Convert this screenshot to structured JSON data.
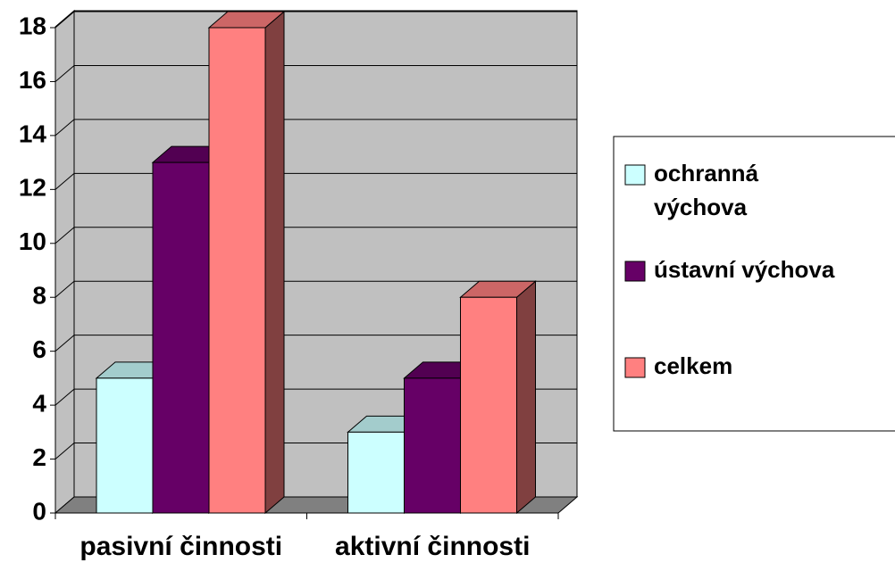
{
  "chart_data": {
    "type": "bar3d",
    "categories": [
      "pasivní činnosti",
      "aktivní činnosti"
    ],
    "series": [
      {
        "name": "ochranná výchova",
        "color": "#ccffff",
        "values": [
          5,
          3
        ]
      },
      {
        "name": "ústavní výchova",
        "color": "#660066",
        "values": [
          13,
          5
        ]
      },
      {
        "name": "celkem",
        "color": "#ff8080",
        "values": [
          18,
          8
        ]
      }
    ],
    "ylim": [
      0,
      18
    ],
    "yticks": [
      0,
      2,
      4,
      6,
      8,
      10,
      12,
      14,
      16,
      18
    ],
    "grid": true,
    "legend": "right"
  }
}
